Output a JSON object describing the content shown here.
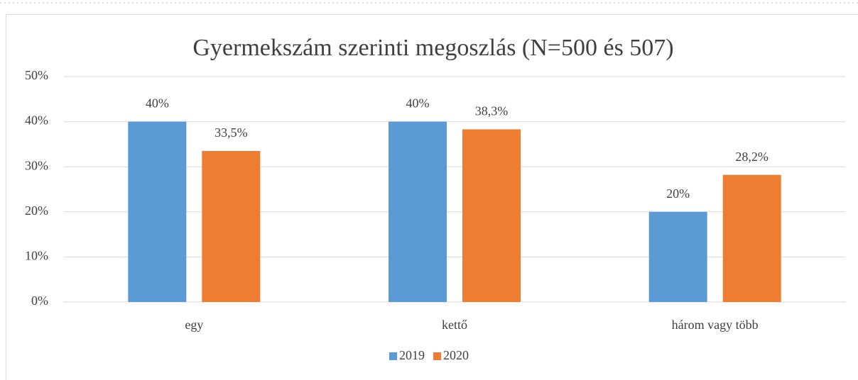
{
  "chart_data": {
    "type": "bar",
    "title": "Gyermekszám szerinti megoszlás (N=500 és 507)",
    "categories": [
      "egy",
      "kettő",
      "három vagy több"
    ],
    "series": [
      {
        "name": "2019",
        "color": "#5b9bd5",
        "values": [
          40,
          40,
          20
        ],
        "value_labels": [
          "40%",
          "40%",
          "20%"
        ]
      },
      {
        "name": "2020",
        "color": "#ed7d31",
        "values": [
          33.5,
          38.3,
          28.2
        ],
        "value_labels": [
          "33,5%",
          "38,3%",
          "28,2%"
        ]
      }
    ],
    "ylim": [
      0,
      50
    ],
    "yticks": [
      {
        "value": 0,
        "label": "0%"
      },
      {
        "value": 10,
        "label": "10%"
      },
      {
        "value": 20,
        "label": "20%"
      },
      {
        "value": 30,
        "label": "30%"
      },
      {
        "value": 40,
        "label": "40%"
      },
      {
        "value": 50,
        "label": "50%"
      }
    ],
    "grid": true,
    "legend": "bottom"
  }
}
